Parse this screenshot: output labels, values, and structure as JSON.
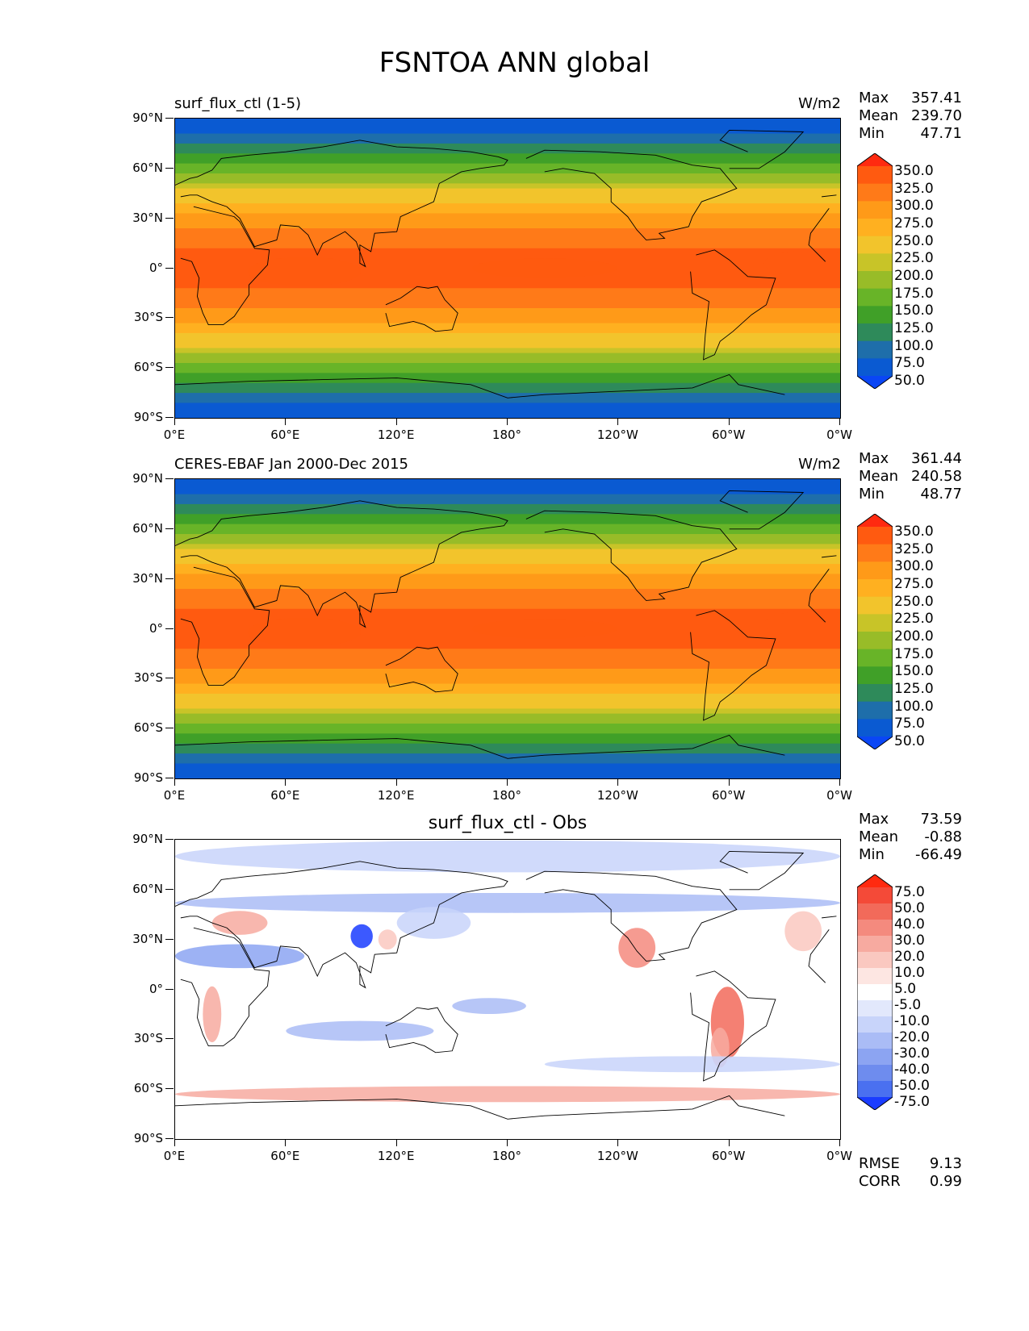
{
  "figure_title": "FSNTOA ANN global",
  "lat_ticks": [
    "90°N",
    "60°N",
    "30°N",
    "0°",
    "30°S",
    "60°S",
    "90°S"
  ],
  "lon_ticks": [
    "0°E",
    "60°E",
    "120°E",
    "180°",
    "120°W",
    "60°W",
    "0°W"
  ],
  "chart_data": [
    {
      "type": "heatmap",
      "title": "surf_flux_ctl (1-5)",
      "units": "W/m2",
      "stats": {
        "max": "357.41",
        "mean": "239.70",
        "min": "47.71"
      },
      "colorbar_levels": [
        "350.0",
        "325.0",
        "300.0",
        "275.0",
        "250.0",
        "225.0",
        "200.0",
        "175.0",
        "150.0",
        "125.0",
        "100.0",
        "75.0",
        "50.0"
      ],
      "colorbar_colors": [
        "#ff2a10",
        "#ff5a10",
        "#ff7a18",
        "#ff9a18",
        "#ffb020",
        "#f2c42c",
        "#c8c428",
        "#98bc28",
        "#68b428",
        "#40a028",
        "#2e8a5a",
        "#1e6eaa",
        "#0a5ad2",
        "#0a46f5"
      ],
      "xlim": [
        0,
        360
      ],
      "ylim": [
        -90,
        90
      ],
      "labels": {
        "max": "Max",
        "mean": "Mean",
        "min": "Min"
      }
    },
    {
      "type": "heatmap",
      "title": "CERES-EBAF Jan 2000-Dec 2015",
      "units": "W/m2",
      "stats": {
        "max": "361.44",
        "mean": "240.58",
        "min": "48.77"
      },
      "colorbar_levels": [
        "350.0",
        "325.0",
        "300.0",
        "275.0",
        "250.0",
        "225.0",
        "200.0",
        "175.0",
        "150.0",
        "125.0",
        "100.0",
        "75.0",
        "50.0"
      ],
      "colorbar_colors": [
        "#ff2a10",
        "#ff5a10",
        "#ff7a18",
        "#ff9a18",
        "#ffb020",
        "#f2c42c",
        "#c8c428",
        "#98bc28",
        "#68b428",
        "#40a028",
        "#2e8a5a",
        "#1e6eaa",
        "#0a5ad2",
        "#0a46f5"
      ],
      "xlim": [
        0,
        360
      ],
      "ylim": [
        -90,
        90
      ],
      "labels": {
        "max": "Max",
        "mean": "Mean",
        "min": "Min"
      }
    },
    {
      "type": "heatmap",
      "title": "surf_flux_ctl - Obs",
      "units": "",
      "stats": {
        "max": "73.59",
        "mean": "-0.88",
        "min": "-66.49"
      },
      "colorbar_levels": [
        "75.0",
        "50.0",
        "40.0",
        "30.0",
        "20.0",
        "10.0",
        "5.0",
        "-5.0",
        "-10.0",
        "-20.0",
        "-30.0",
        "-40.0",
        "-50.0",
        "-75.0"
      ],
      "colorbar_colors": [
        "#ff2a10",
        "#f44a38",
        "#f26a5a",
        "#f48a7e",
        "#f7aaa0",
        "#fac8c0",
        "#fde6e2",
        "#ffffff",
        "#e2e8fc",
        "#c8d4fa",
        "#aabcf6",
        "#8ca4f2",
        "#6e8cee",
        "#4a70f0",
        "#1a3cff"
      ],
      "xlim": [
        0,
        360
      ],
      "ylim": [
        -90,
        90
      ],
      "labels": {
        "max": "Max",
        "mean": "Mean",
        "min": "Min"
      },
      "metrics": {
        "rmse_label": "RMSE",
        "rmse": "9.13",
        "corr_label": "CORR",
        "corr": "0.99"
      }
    }
  ]
}
